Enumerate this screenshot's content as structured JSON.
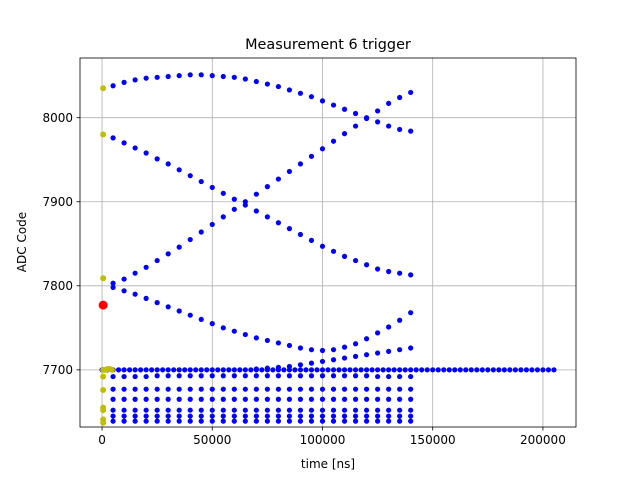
{
  "chart_data": {
    "type": "scatter",
    "title": "Measurement 6 trigger",
    "xlabel": "time [ns]",
    "ylabel": "ADC Code",
    "xlim": [
      -10000,
      215000
    ],
    "ylim": [
      7632,
      8071
    ],
    "xticks": [
      0,
      50000,
      100000,
      150000,
      200000
    ],
    "xtick_labels": [
      "0",
      "50000",
      "100000",
      "150000",
      "200000"
    ],
    "yticks": [
      7700,
      7800,
      7900,
      8000
    ],
    "ytick_labels": [
      "7700",
      "7800",
      "7900",
      "8000"
    ],
    "grid": true,
    "legend": "none",
    "colors": {
      "main": "#0000ff",
      "early": "#bfbf00",
      "marker": "#ff0000",
      "grid": "#b0b0b0"
    },
    "series": [
      {
        "role": "upper-arc",
        "color": "#0000ff",
        "x": [
          5000,
          10000,
          15000,
          20000,
          25000,
          30000,
          35000,
          40000,
          45000,
          50000,
          55000,
          60000,
          65000,
          70000,
          75000,
          80000,
          85000,
          90000,
          95000,
          100000,
          105000,
          110000,
          115000,
          120000,
          125000,
          130000,
          135000,
          140000
        ],
        "y": [
          8038,
          8042,
          8045,
          8047,
          8048,
          8049,
          8050,
          8051,
          8051,
          8050,
          8049,
          8048,
          8046,
          8043,
          8040,
          8037,
          8033,
          8029,
          8025,
          8020,
          8015,
          8010,
          8005,
          8000,
          7995,
          7990,
          7986,
          7984
        ]
      },
      {
        "role": "descending-line-1",
        "color": "#0000ff",
        "x": [
          5000,
          10000,
          15000,
          20000,
          25000,
          30000,
          35000,
          40000,
          45000,
          50000,
          55000,
          60000,
          65000,
          70000,
          75000,
          80000,
          85000,
          90000,
          95000,
          100000,
          105000,
          110000,
          115000,
          120000,
          125000,
          130000,
          135000,
          140000
        ],
        "y": [
          7976,
          7970,
          7964,
          7958,
          7951,
          7945,
          7938,
          7931,
          7924,
          7917,
          7910,
          7903,
          7896,
          7889,
          7882,
          7875,
          7868,
          7861,
          7854,
          7847,
          7841,
          7835,
          7830,
          7825,
          7820,
          7817,
          7815,
          7813
        ]
      },
      {
        "role": "ascending-line",
        "color": "#0000ff",
        "x": [
          5000,
          10000,
          15000,
          20000,
          25000,
          30000,
          35000,
          40000,
          45000,
          50000,
          55000,
          60000,
          65000,
          70000,
          75000,
          80000,
          85000,
          90000,
          95000,
          100000,
          105000,
          110000,
          115000,
          120000,
          125000,
          130000,
          135000,
          140000
        ],
        "y": [
          7803,
          7808,
          7815,
          7822,
          7830,
          7838,
          7846,
          7855,
          7864,
          7873,
          7882,
          7891,
          7900,
          7909,
          7918,
          7927,
          7936,
          7945,
          7954,
          7963,
          7972,
          7981,
          7990,
          7999,
          8008,
          8017,
          8024,
          8030
        ]
      },
      {
        "role": "lower-arc",
        "color": "#0000ff",
        "x": [
          5000,
          10000,
          15000,
          20000,
          25000,
          30000,
          35000,
          40000,
          45000,
          50000,
          55000,
          60000,
          65000,
          70000,
          75000,
          80000,
          85000,
          90000,
          95000,
          100000,
          105000,
          110000,
          115000,
          120000,
          125000,
          130000,
          135000,
          140000
        ],
        "y": [
          7798,
          7794,
          7790,
          7785,
          7780,
          7775,
          7770,
          7765,
          7760,
          7755,
          7750,
          7746,
          7742,
          7738,
          7735,
          7732,
          7729,
          7726,
          7724,
          7723,
          7724,
          7727,
          7731,
          7737,
          7744,
          7751,
          7759,
          7768
        ]
      },
      {
        "role": "rising-band",
        "color": "#0000ff",
        "x": [
          70000,
          75000,
          80000,
          85000,
          90000,
          95000,
          100000,
          105000,
          110000,
          115000,
          120000,
          125000,
          130000,
          135000,
          140000
        ],
        "y": [
          7701,
          7702,
          7703,
          7704,
          7706,
          7708,
          7710,
          7712,
          7714,
          7716,
          7718,
          7720,
          7722,
          7724,
          7726
        ]
      },
      {
        "role": "band-7693",
        "color": "#0000ff",
        "x": [
          5000,
          10000,
          15000,
          20000,
          25000,
          30000,
          35000,
          40000,
          45000,
          50000,
          55000,
          60000,
          65000,
          70000,
          75000,
          80000,
          85000,
          90000,
          95000,
          100000,
          105000,
          110000,
          115000,
          120000,
          125000,
          130000,
          135000,
          140000
        ],
        "y": [
          7692,
          7692,
          7692,
          7692,
          7693,
          7693,
          7693,
          7693,
          7693,
          7693,
          7693,
          7693,
          7693,
          7693,
          7693,
          7693,
          7693,
          7693,
          7693,
          7693,
          7693,
          7693,
          7693,
          7693,
          7692,
          7692,
          7692,
          7692
        ]
      },
      {
        "role": "band-7677",
        "color": "#0000ff",
        "x": [
          5000,
          10000,
          15000,
          20000,
          25000,
          30000,
          35000,
          40000,
          45000,
          50000,
          55000,
          60000,
          65000,
          70000,
          75000,
          80000,
          85000,
          90000,
          95000,
          100000,
          105000,
          110000,
          115000,
          120000,
          125000,
          130000,
          135000,
          140000
        ],
        "y": [
          7677,
          7677,
          7677,
          7677,
          7677,
          7677,
          7677,
          7677,
          7677,
          7677,
          7677,
          7677,
          7677,
          7677,
          7677,
          7677,
          7677,
          7677,
          7677,
          7677,
          7677,
          7677,
          7677,
          7677,
          7677,
          7677,
          7677,
          7677
        ]
      },
      {
        "role": "band-7665",
        "color": "#0000ff",
        "x": [
          5000,
          10000,
          15000,
          20000,
          25000,
          30000,
          35000,
          40000,
          45000,
          50000,
          55000,
          60000,
          65000,
          70000,
          75000,
          80000,
          85000,
          90000,
          95000,
          100000,
          105000,
          110000,
          115000,
          120000,
          125000,
          130000,
          135000,
          140000
        ],
        "y": [
          7665,
          7665,
          7665,
          7665,
          7665,
          7665,
          7665,
          7665,
          7665,
          7665,
          7665,
          7665,
          7665,
          7665,
          7665,
          7665,
          7665,
          7665,
          7665,
          7665,
          7665,
          7665,
          7665,
          7665,
          7665,
          7665,
          7665,
          7665
        ]
      },
      {
        "role": "band-7652",
        "color": "#0000ff",
        "x": [
          5000,
          10000,
          15000,
          20000,
          25000,
          30000,
          35000,
          40000,
          45000,
          50000,
          55000,
          60000,
          65000,
          70000,
          75000,
          80000,
          85000,
          90000,
          95000,
          100000,
          105000,
          110000,
          115000,
          120000,
          125000,
          130000,
          135000,
          140000
        ],
        "y": [
          7652,
          7652,
          7652,
          7652,
          7652,
          7652,
          7652,
          7652,
          7652,
          7652,
          7652,
          7652,
          7652,
          7652,
          7652,
          7652,
          7652,
          7652,
          7652,
          7652,
          7652,
          7652,
          7652,
          7652,
          7652,
          7652,
          7652,
          7652
        ]
      },
      {
        "role": "band-7645",
        "color": "#0000ff",
        "x": [
          5000,
          10000,
          15000,
          20000,
          25000,
          30000,
          35000,
          40000,
          45000,
          50000,
          55000,
          60000,
          65000,
          70000,
          75000,
          80000,
          85000,
          90000,
          95000,
          100000,
          105000,
          110000,
          115000,
          120000,
          125000,
          130000,
          135000,
          140000
        ],
        "y": [
          7645,
          7645,
          7645,
          7645,
          7645,
          7645,
          7645,
          7645,
          7645,
          7645,
          7645,
          7645,
          7645,
          7645,
          7645,
          7645,
          7645,
          7645,
          7645,
          7645,
          7645,
          7645,
          7645,
          7645,
          7645,
          7645,
          7645,
          7645
        ]
      },
      {
        "role": "band-7639",
        "color": "#0000ff",
        "x": [
          5000,
          10000,
          15000,
          20000,
          25000,
          30000,
          35000,
          40000,
          45000,
          50000,
          55000,
          60000,
          65000,
          70000,
          75000,
          80000,
          85000,
          90000,
          95000,
          100000,
          105000,
          110000,
          115000,
          120000,
          125000,
          130000,
          135000,
          140000
        ],
        "y": [
          7639,
          7639,
          7639,
          7639,
          7639,
          7639,
          7639,
          7639,
          7639,
          7639,
          7639,
          7639,
          7639,
          7639,
          7639,
          7639,
          7639,
          7639,
          7639,
          7639,
          7639,
          7639,
          7639,
          7639,
          7639,
          7639,
          7639,
          7639
        ]
      },
      {
        "role": "baseline-7700",
        "color": "#0000ff",
        "x_range": [
          0,
          205000
        ],
        "x_step": 2500,
        "y": 7700
      },
      {
        "role": "early-samples",
        "color": "#bfbf00",
        "x": [
          500,
          500,
          500,
          500,
          500,
          500,
          500,
          500,
          500,
          500,
          1500,
          2500,
          3500,
          4500
        ],
        "y": [
          8035,
          7980,
          7809,
          7700,
          7692,
          7676,
          7655,
          7652,
          7641,
          7637,
          7700,
          7701,
          7701,
          7700
        ]
      },
      {
        "role": "trigger-marker",
        "color": "#ff0000",
        "x": [
          500
        ],
        "y": [
          7777
        ]
      }
    ]
  }
}
